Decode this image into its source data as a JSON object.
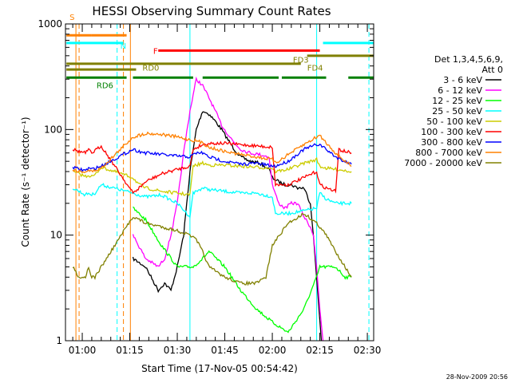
{
  "chart_data": {
    "type": "line",
    "title": "HESSI Observing Summary Count Rates",
    "xlabel": "Start Time (17-Nov-05 00:54:42)",
    "ylabel": "Count Rate (s⁻¹ detector⁻¹)",
    "y_scale": "log",
    "ylim": [
      1,
      1000
    ],
    "xlim_min": [
      54.7,
      152
    ],
    "x_ticks": [
      {
        "label": "01:00",
        "value": 60
      },
      {
        "label": "01:15",
        "value": 75
      },
      {
        "label": "01:30",
        "value": 90
      },
      {
        "label": "01:45",
        "value": 105
      },
      {
        "label": "02:00",
        "value": 120
      },
      {
        "label": "02:15",
        "value": 135
      },
      {
        "label": "02:30",
        "value": 150
      }
    ],
    "y_ticks": [
      {
        "label": "1",
        "value": 1
      },
      {
        "label": "10",
        "value": 10
      },
      {
        "label": "100",
        "value": 100
      },
      {
        "label": "1000",
        "value": 1000
      }
    ],
    "legend_title": "Det 1,3,4,5,6,9, Att 0",
    "legend_title_lines": [
      "Det 1,3,4,5,6,9,",
      "Att 0"
    ],
    "legend_position": "right",
    "timestamp": "28-Nov-2009 20:56",
    "series": [
      {
        "name": "3 - 6 keV",
        "color": "#000000",
        "x": [
          76,
          80,
          84,
          86,
          88,
          90,
          92,
          94,
          96,
          98,
          100,
          102,
          104,
          106,
          108,
          110,
          113,
          116,
          119,
          120,
          122,
          124,
          126,
          128,
          130,
          132,
          133,
          134,
          135.5
        ],
        "y": [
          6,
          5,
          3,
          3.5,
          3,
          5,
          10,
          40,
          100,
          150,
          140,
          120,
          100,
          80,
          65,
          55,
          50,
          48,
          42,
          35,
          32,
          30,
          30,
          28,
          28,
          20,
          10,
          4,
          1
        ]
      },
      {
        "name": "6 - 12 keV",
        "color": "#ff00ff",
        "x": [
          76,
          80,
          84,
          86,
          88,
          90,
          92,
          94,
          96,
          98,
          100,
          102,
          104,
          106,
          108,
          110,
          113,
          116,
          119,
          120,
          122,
          124,
          126,
          128,
          130,
          132,
          133,
          134,
          135,
          136
        ],
        "y": [
          10,
          6,
          5,
          6,
          10,
          20,
          60,
          150,
          300,
          260,
          200,
          150,
          110,
          90,
          75,
          65,
          60,
          58,
          55,
          30,
          20,
          18,
          20,
          20,
          15,
          12,
          10,
          5,
          2,
          1
        ]
      },
      {
        "name": "12 - 25 keV",
        "color": "#00ff00",
        "x": [
          76,
          80,
          85,
          90,
          95,
          98,
          100,
          105,
          110,
          115,
          120,
          125,
          130,
          134,
          135,
          140,
          143,
          145
        ],
        "y": [
          18,
          14,
          8,
          5,
          5,
          6,
          7,
          5,
          3,
          2,
          1.5,
          1.2,
          2,
          4,
          5,
          5,
          4,
          4
        ]
      },
      {
        "name": "25 - 50 keV",
        "color": "#00ffff",
        "x": [
          57,
          59,
          61,
          62,
          63,
          64,
          66,
          76,
          78,
          80,
          85,
          90,
          94,
          95,
          98,
          100,
          105,
          110,
          115,
          120,
          121,
          125,
          130,
          134,
          135,
          137,
          140,
          143,
          145
        ],
        "y": [
          28,
          26,
          24,
          25,
          24,
          25,
          30,
          25,
          24,
          23,
          24,
          20,
          15,
          25,
          28,
          27,
          26,
          25,
          25,
          23,
          16,
          16,
          17,
          18,
          25,
          22,
          20,
          20,
          20
        ]
      },
      {
        "name": "50 - 100 keV",
        "color": "#cccc00",
        "x": [
          57,
          59,
          61,
          62,
          63,
          64,
          66,
          76,
          78,
          80,
          85,
          90,
          94,
          95,
          98,
          100,
          105,
          110,
          115,
          120,
          121,
          125,
          130,
          134,
          135,
          137,
          140,
          143,
          145
        ],
        "y": [
          40,
          38,
          36,
          37,
          36,
          37,
          44,
          35,
          30,
          28,
          26,
          25,
          24,
          45,
          48,
          46,
          46,
          45,
          44,
          43,
          40,
          42,
          48,
          52,
          45,
          43,
          42,
          41,
          40
        ]
      },
      {
        "name": "100 - 300 keV",
        "color": "#ff0000",
        "x": [
          57,
          59,
          61,
          62,
          63,
          64,
          66,
          76,
          78,
          80,
          85,
          90,
          94,
          95,
          98,
          100,
          105,
          110,
          115,
          120,
          121,
          125,
          130,
          134,
          135,
          137,
          140,
          141,
          142,
          145
        ],
        "y": [
          65,
          62,
          60,
          64,
          60,
          63,
          70,
          25,
          28,
          32,
          38,
          42,
          45,
          65,
          72,
          74,
          74,
          72,
          70,
          68,
          30,
          30,
          35,
          40,
          30,
          28,
          26,
          65,
          63,
          60
        ]
      },
      {
        "name": "300 - 800 keV",
        "color": "#0000ff",
        "x": [
          57,
          59,
          61,
          62,
          63,
          64,
          66,
          76,
          78,
          80,
          85,
          90,
          94,
          96,
          98,
          100,
          105,
          110,
          115,
          120,
          121,
          125,
          130,
          134,
          135,
          137,
          140,
          143,
          145
        ],
        "y": [
          44,
          42,
          41,
          43,
          42,
          43,
          45,
          65,
          62,
          60,
          58,
          56,
          55,
          60,
          60,
          55,
          50,
          47,
          48,
          45,
          45,
          50,
          65,
          72,
          72,
          65,
          55,
          50,
          47
        ]
      },
      {
        "name": "800 - 7000 keV",
        "color": "#ff8000",
        "x": [
          57,
          59,
          61,
          62,
          63,
          64,
          66,
          76,
          78,
          80,
          85,
          90,
          94,
          96,
          98,
          100,
          105,
          110,
          115,
          120,
          121,
          125,
          130,
          134,
          135,
          137,
          140,
          143,
          145
        ],
        "y": [
          42,
          40,
          40,
          41,
          40,
          41,
          43,
          85,
          88,
          92,
          90,
          85,
          80,
          78,
          75,
          68,
          62,
          58,
          55,
          52,
          48,
          58,
          72,
          85,
          88,
          75,
          60,
          50,
          45
        ]
      },
      {
        "name": "7000 - 20000 keV",
        "color": "#808000",
        "x": [
          57,
          59,
          61,
          62,
          63,
          64,
          66,
          76,
          78,
          80,
          85,
          90,
          94,
          96,
          98,
          100,
          105,
          110,
          115,
          118,
          120,
          125,
          130,
          134,
          135,
          137,
          140,
          143,
          145
        ],
        "y": [
          5,
          4,
          4,
          5,
          4,
          4,
          5,
          15,
          14,
          13,
          12,
          11,
          10,
          9,
          7,
          5,
          4,
          3.5,
          3.5,
          4,
          8,
          13,
          16,
          13,
          12,
          10,
          7,
          5,
          4
        ]
      }
    ],
    "annotations": [
      {
        "label": "S",
        "color": "#ff8000"
      },
      {
        "label": "N",
        "color": "#00ffff"
      },
      {
        "label": "F",
        "color": "#ff0000"
      },
      {
        "label": "FD3",
        "color": "#808000"
      },
      {
        "label": "FD4",
        "color": "#808000"
      },
      {
        "label": "RD0",
        "color": "#808000"
      },
      {
        "label": "RD6",
        "color": "#008000"
      }
    ],
    "flag_bars": [
      {
        "label": "S",
        "color": "#ff8000",
        "y": 780,
        "segments": [
          [
            55,
            63
          ],
          [
            63,
            74
          ]
        ]
      },
      {
        "label": "N",
        "color": "#00ffff",
        "y": 660,
        "segments": [
          [
            55,
            73
          ],
          [
            136,
            152
          ]
        ]
      },
      {
        "label": "F",
        "color": "#ff0000",
        "y": 560,
        "segments": [
          [
            84,
            135
          ]
        ]
      },
      {
        "label": "FD3",
        "color": "#808000",
        "y": 500,
        "segments": [
          [
            131,
            152
          ]
        ]
      },
      {
        "label": "FD4",
        "color": "#808000",
        "y": 420,
        "segments": [
          [
            55,
            129
          ]
        ]
      },
      {
        "label": "RD0",
        "color": "#808000",
        "y": 370,
        "segments": [
          [
            55,
            77
          ]
        ]
      },
      {
        "label": "RD6",
        "color": "#008000",
        "y": 310,
        "segments": [
          [
            55,
            74
          ],
          [
            76,
            95
          ],
          [
            98,
            122
          ],
          [
            123,
            137
          ],
          [
            144,
            152
          ]
        ]
      }
    ],
    "vertical_markers": [
      {
        "x": 58.0,
        "color": "#ff8000",
        "style": "solid"
      },
      {
        "x": 59.0,
        "color": "#ff8000",
        "style": "dashed"
      },
      {
        "x": 71.0,
        "color": "#00ffff",
        "style": "dashed"
      },
      {
        "x": 73.0,
        "color": "#ff8000",
        "style": "dashed"
      },
      {
        "x": 75.2,
        "color": "#ff8000",
        "style": "solid"
      },
      {
        "x": 94.0,
        "color": "#00ffff",
        "style": "solid"
      },
      {
        "x": 134.0,
        "color": "#00ffff",
        "style": "solid"
      },
      {
        "x": 150.5,
        "color": "#00ffff",
        "style": "dashed"
      }
    ]
  }
}
